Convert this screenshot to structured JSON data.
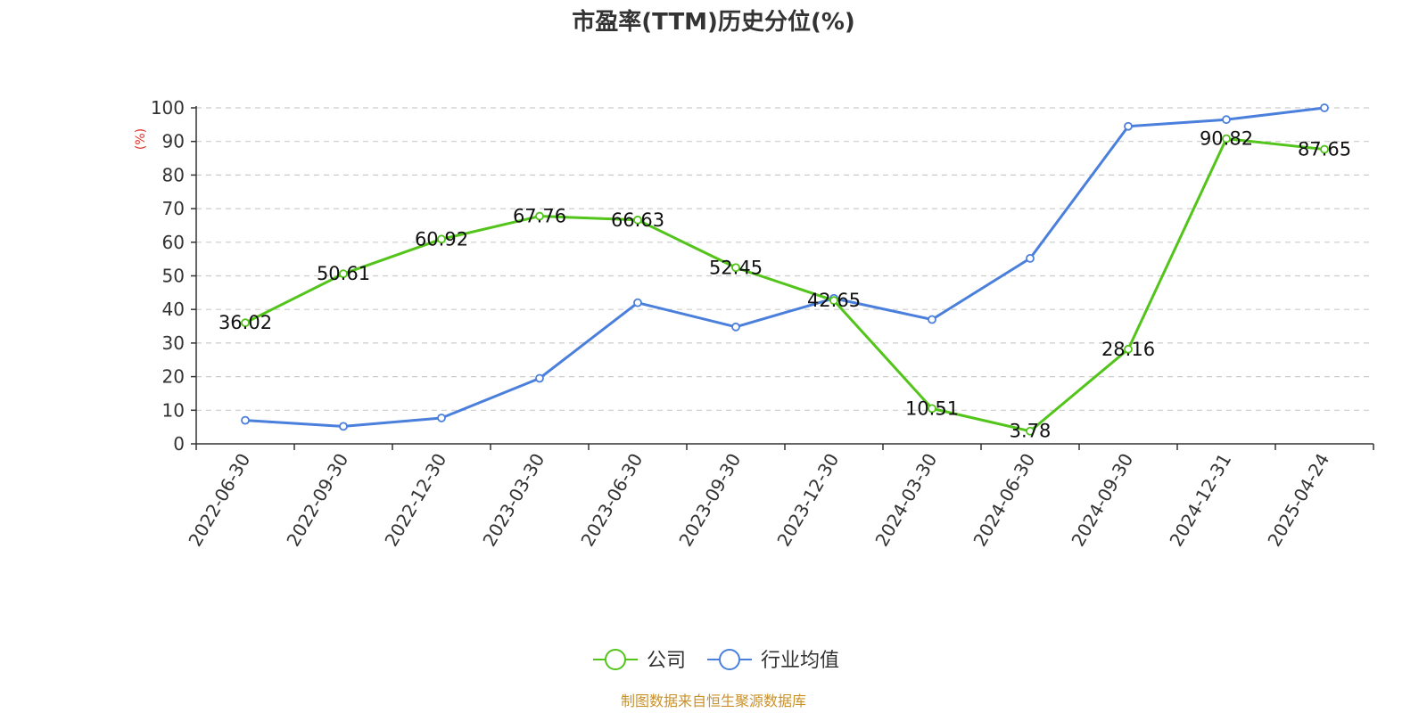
{
  "chart_data": {
    "type": "line",
    "title": "市盈率(TTM)历史分位(%)",
    "ylabel": "(%)",
    "ylim": [
      0,
      100
    ],
    "yticks": [
      0,
      10,
      20,
      30,
      40,
      50,
      60,
      70,
      80,
      90,
      100
    ],
    "grid": true,
    "legend_position": "bottom-center",
    "categories": [
      "2022-06-30",
      "2022-09-30",
      "2022-12-30",
      "2023-03-30",
      "2023-06-30",
      "2023-09-30",
      "2023-12-30",
      "2024-03-30",
      "2024-06-30",
      "2024-09-30",
      "2024-12-31",
      "2025-04-24"
    ],
    "series": [
      {
        "name": "公司",
        "color": "#52c41a",
        "show_labels": true,
        "values": [
          36.02,
          50.61,
          60.92,
          67.76,
          66.63,
          52.45,
          42.65,
          10.51,
          3.78,
          28.16,
          90.82,
          87.65
        ]
      },
      {
        "name": "行业均值",
        "color": "#4a7fdc",
        "show_labels": false,
        "values": [
          7,
          5.2,
          7.7,
          19.5,
          42,
          34.8,
          43.3,
          37,
          55.2,
          94.5,
          96.5,
          100
        ]
      }
    ],
    "source": "制图数据来自恒生聚源数据库",
    "source_color": "#c8912a",
    "ylabel_color": "#e0302a"
  }
}
